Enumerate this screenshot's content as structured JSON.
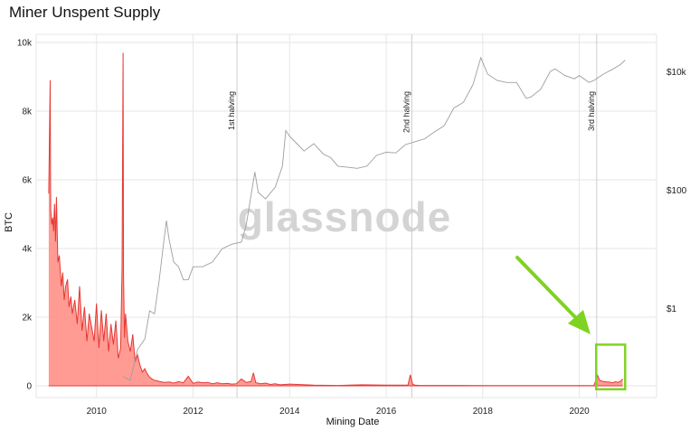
{
  "chart_data": {
    "type": "area",
    "title": "Miner Unspent Supply",
    "xlabel": "Mining Date",
    "ylabel": "BTC",
    "watermark": "glassnode",
    "xlim": [
      2008.75,
      2021.6
    ],
    "ylim": [
      0,
      10000
    ],
    "y_ticks": [
      0,
      2000,
      4000,
      6000,
      8000,
      10000
    ],
    "y_tick_labels": [
      "0",
      "2k",
      "4k",
      "6k",
      "8k",
      "10k"
    ],
    "x_ticks": [
      2010,
      2012,
      2014,
      2016,
      2018,
      2020
    ],
    "x_tick_labels": [
      "2010",
      "2012",
      "2014",
      "2016",
      "2018",
      "2020"
    ],
    "y2_scale": "log",
    "y2_ticks": [
      1,
      100,
      10000
    ],
    "y2_tick_labels": [
      "$1",
      "$100",
      "$10k"
    ],
    "grid": true,
    "colors": {
      "supply": "#e53935",
      "supply_fill": "#ff8a80",
      "price": "#9e9e9e",
      "highlight": "#7ed321",
      "grid": "#e6e6e6",
      "halving_line": "#cccccc"
    },
    "annotations": [
      {
        "label": "1st halving",
        "x": 2012.91
      },
      {
        "label": "2nd halving",
        "x": 2016.53
      },
      {
        "label": "3rd halving",
        "x": 2020.36
      }
    ],
    "highlight_box": {
      "x": [
        2020.35,
        2020.95
      ],
      "y": [
        -100,
        1200
      ]
    },
    "series": [
      {
        "name": "Miner Unspent Supply",
        "axis": "left",
        "x": [
          2009.01,
          2009.04,
          2009.05,
          2009.07,
          2009.09,
          2009.11,
          2009.13,
          2009.15,
          2009.17,
          2009.2,
          2009.23,
          2009.27,
          2009.3,
          2009.33,
          2009.36,
          2009.4,
          2009.43,
          2009.47,
          2009.5,
          2009.55,
          2009.6,
          2009.65,
          2009.7,
          2009.75,
          2009.8,
          2009.85,
          2009.9,
          2009.95,
          2010.0,
          2010.05,
          2010.1,
          2010.15,
          2010.2,
          2010.25,
          2010.3,
          2010.35,
          2010.4,
          2010.45,
          2010.5,
          2010.53,
          2010.55,
          2010.56,
          2010.58,
          2010.6,
          2010.65,
          2010.7,
          2010.75,
          2010.8,
          2010.85,
          2010.9,
          2010.95,
          2011.0,
          2011.05,
          2011.1,
          2011.15,
          2011.2,
          2011.3,
          2011.4,
          2011.5,
          2011.6,
          2011.7,
          2011.8,
          2011.9,
          2012.0,
          2012.1,
          2012.2,
          2012.3,
          2012.4,
          2012.5,
          2012.6,
          2012.7,
          2012.8,
          2012.9,
          2013.0,
          2013.1,
          2013.2,
          2013.25,
          2013.3,
          2013.4,
          2013.5,
          2013.6,
          2013.7,
          2013.8,
          2013.9,
          2014.0,
          2014.5,
          2015.0,
          2015.5,
          2016.0,
          2016.45,
          2016.5,
          2016.55,
          2016.6,
          2016.7,
          2017.0,
          2017.5,
          2018.0,
          2018.5,
          2019.0,
          2019.5,
          2020.0,
          2020.3,
          2020.38,
          2020.42,
          2020.5,
          2020.6,
          2020.7,
          2020.75,
          2020.8,
          2020.85,
          2020.9
        ],
        "values": [
          5600,
          8900,
          5200,
          4700,
          4900,
          4500,
          5300,
          4200,
          5500,
          3600,
          3800,
          2900,
          3300,
          2500,
          2900,
          3100,
          2300,
          2600,
          2100,
          2500,
          1800,
          2900,
          1600,
          2300,
          1300,
          2100,
          1700,
          1300,
          2400,
          1100,
          2200,
          1300,
          2100,
          1000,
          1800,
          1200,
          1900,
          800,
          1100,
          3500,
          9700,
          3200,
          1400,
          2100,
          1300,
          1000,
          1500,
          700,
          900,
          600,
          400,
          500,
          350,
          250,
          200,
          160,
          130,
          100,
          110,
          80,
          120,
          90,
          280,
          70,
          110,
          90,
          100,
          60,
          90,
          60,
          70,
          50,
          60,
          200,
          100,
          120,
          380,
          90,
          60,
          80,
          40,
          60,
          30,
          40,
          50,
          20,
          10,
          30,
          20,
          20,
          320,
          40,
          20,
          10,
          10,
          10,
          5,
          5,
          5,
          5,
          5,
          5,
          300,
          160,
          120,
          110,
          90,
          120,
          100,
          130,
          200
        ]
      },
      {
        "name": "BTC Price",
        "axis": "right",
        "x": [
          2010.55,
          2010.7,
          2010.85,
          2011.0,
          2011.1,
          2011.2,
          2011.3,
          2011.4,
          2011.45,
          2011.5,
          2011.6,
          2011.7,
          2011.8,
          2011.9,
          2012.0,
          2012.2,
          2012.4,
          2012.6,
          2012.8,
          2013.0,
          2013.1,
          2013.2,
          2013.28,
          2013.35,
          2013.5,
          2013.7,
          2013.85,
          2013.92,
          2014.0,
          2014.15,
          2014.3,
          2014.5,
          2014.7,
          2014.85,
          2015.0,
          2015.2,
          2015.4,
          2015.6,
          2015.8,
          2016.0,
          2016.2,
          2016.4,
          2016.6,
          2016.8,
          2017.0,
          2017.2,
          2017.4,
          2017.6,
          2017.8,
          2017.96,
          2018.1,
          2018.3,
          2018.5,
          2018.7,
          2018.9,
          2019.0,
          2019.2,
          2019.4,
          2019.5,
          2019.7,
          2019.9,
          2020.0,
          2020.2,
          2020.3,
          2020.5,
          2020.7,
          2020.85,
          2020.95
        ],
        "values": [
          0.07,
          0.06,
          0.2,
          0.3,
          0.9,
          0.8,
          3,
          15,
          30,
          15,
          6,
          5,
          3,
          3,
          5,
          5,
          6,
          10,
          12,
          13,
          25,
          80,
          200,
          90,
          70,
          110,
          250,
          1000,
          800,
          600,
          450,
          600,
          400,
          350,
          250,
          240,
          230,
          250,
          380,
          430,
          420,
          580,
          650,
          730,
          950,
          1200,
          2400,
          3000,
          6000,
          17000,
          9000,
          7000,
          6500,
          6500,
          3500,
          3700,
          5000,
          10000,
          11000,
          8500,
          7500,
          8500,
          6500,
          7000,
          9000,
          11000,
          13000,
          15500
        ]
      }
    ]
  }
}
